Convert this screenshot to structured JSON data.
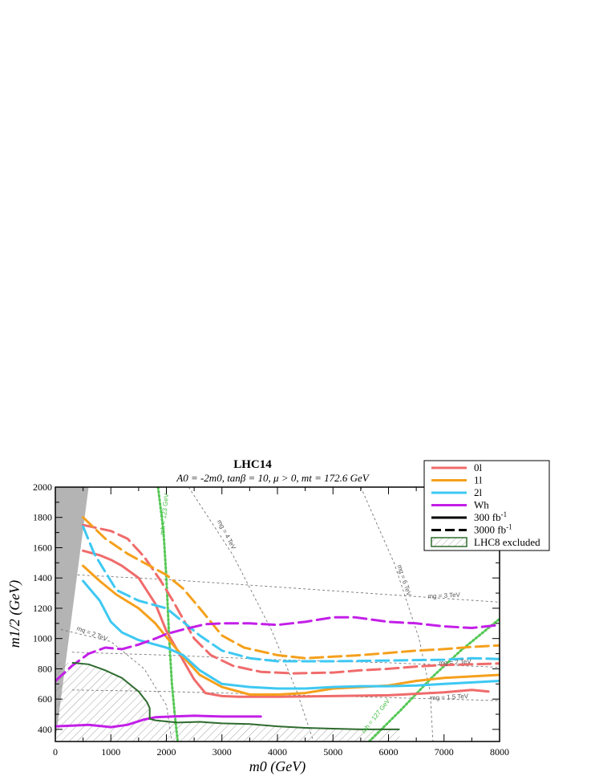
{
  "chart_data": {
    "type": "line",
    "title": "LHC14",
    "subtitle": "A0 = -2m0,  tanβ = 10,  μ > 0,  mt = 172.6 GeV",
    "xlabel": "m0 (GeV)",
    "ylabel": "m1/2 (GeV)",
    "xlim": [
      0,
      8000
    ],
    "ylim": [
      320,
      2000
    ],
    "x_ticks": [
      0,
      1000,
      2000,
      3000,
      4000,
      5000,
      6000,
      7000,
      8000
    ],
    "y_ticks": [
      400,
      600,
      800,
      1000,
      1200,
      1400,
      1600,
      1800,
      2000
    ],
    "legend_position": "top-right",
    "legend": [
      "0l",
      "1l",
      "2l",
      "Wh",
      "300 fb-1",
      "3000 fb-1",
      "LHC8 excluded"
    ],
    "colors": {
      "0l": "#f06b6b",
      "1l": "#f5a01c",
      "2l": "#3ec8f2",
      "Wh": "#c31fe8",
      "lhc8": "#2e6b2e",
      "higgs": "#55c855",
      "theory_excluded": "#b4b4b4",
      "contours": "#777777"
    },
    "series": [
      {
        "name": "0l",
        "luminosity": "300 fb-1",
        "x": [
          500,
          800,
          1000,
          1200,
          1500,
          1800,
          2000,
          2200,
          2500,
          2700,
          3000,
          3300,
          4000,
          5000,
          6000,
          7000,
          7500,
          7800
        ],
        "y": [
          1580,
          1550,
          1520,
          1480,
          1400,
          1230,
          1050,
          920,
          730,
          640,
          620,
          615,
          615,
          620,
          625,
          645,
          660,
          650
        ]
      },
      {
        "name": "0l",
        "luminosity": "3000 fb-1",
        "x": [
          500,
          1000,
          1300,
          1600,
          1900,
          2100,
          2300,
          2500,
          2800,
          3200,
          3700,
          4300,
          5000,
          5500,
          6000,
          6500,
          7000,
          7500,
          8000
        ],
        "y": [
          1750,
          1710,
          1660,
          1540,
          1380,
          1260,
          1130,
          1000,
          890,
          820,
          780,
          770,
          775,
          790,
          800,
          815,
          825,
          830,
          835
        ]
      },
      {
        "name": "1l",
        "luminosity": "300 fb-1",
        "x": [
          500,
          800,
          1100,
          1500,
          1800,
          2000,
          2300,
          2600,
          3000,
          3500,
          4000,
          4500,
          5000,
          5500,
          6000,
          6500,
          7000,
          7500,
          8000
        ],
        "y": [
          1480,
          1380,
          1290,
          1200,
          1100,
          1010,
          880,
          760,
          680,
          630,
          630,
          640,
          670,
          680,
          690,
          720,
          740,
          750,
          760
        ]
      },
      {
        "name": "1l",
        "luminosity": "3000 fb-1",
        "x": [
          500,
          900,
          1300,
          1700,
          2000,
          2300,
          2600,
          3000,
          3400,
          4000,
          4500,
          5000,
          5500,
          6000,
          6500,
          7000,
          7500,
          8000
        ],
        "y": [
          1800,
          1660,
          1560,
          1480,
          1420,
          1330,
          1200,
          1020,
          940,
          890,
          870,
          880,
          890,
          905,
          920,
          930,
          945,
          955
        ]
      },
      {
        "name": "2l",
        "luminosity": "300 fb-1",
        "x": [
          500,
          800,
          1000,
          1200,
          1500,
          1800,
          2000,
          2300,
          2600,
          3000,
          3500,
          4000,
          4500,
          5000,
          5500,
          6000,
          6500,
          7000,
          7500,
          8000
        ],
        "y": [
          1380,
          1250,
          1110,
          1040,
          990,
          960,
          940,
          890,
          790,
          700,
          680,
          670,
          670,
          680,
          685,
          685,
          690,
          700,
          710,
          720
        ]
      },
      {
        "name": "2l",
        "luminosity": "3000 fb-1",
        "x": [
          500,
          700,
          900,
          1100,
          1500,
          2000,
          2300,
          2600,
          3000,
          3500,
          4000,
          5000,
          6000,
          7000,
          7500,
          8000
        ],
        "y": [
          1740,
          1560,
          1440,
          1320,
          1250,
          1200,
          1110,
          1020,
          920,
          870,
          850,
          850,
          855,
          860,
          870,
          865
        ]
      },
      {
        "name": "Wh",
        "luminosity": "300 fb-1",
        "x": [
          0,
          300,
          600,
          1000,
          1300,
          1600,
          1800,
          2100,
          2500,
          3000,
          3500,
          3700
        ],
        "y": [
          420,
          425,
          430,
          415,
          430,
          465,
          480,
          485,
          490,
          485,
          485,
          485
        ]
      },
      {
        "name": "Wh",
        "luminosity": "3000 fb-1",
        "x": [
          0,
          300,
          600,
          900,
          1200,
          1500,
          1800,
          2000,
          2300,
          2700,
          3000,
          3500,
          4000,
          4500,
          5000,
          5400,
          6000,
          6500,
          7000,
          7500,
          8000
        ],
        "y": [
          720,
          820,
          900,
          940,
          930,
          960,
          1000,
          1030,
          1060,
          1095,
          1100,
          1100,
          1090,
          1110,
          1140,
          1140,
          1110,
          1100,
          1080,
          1070,
          1090
        ]
      },
      {
        "name": "LHC8 excluded",
        "x": [
          300,
          600,
          900,
          1200,
          1500,
          1650,
          1700,
          1700,
          1800,
          2200,
          2600,
          3000,
          3500,
          4000,
          4500,
          5000,
          5500,
          6000,
          6200
        ],
        "y": [
          840,
          830,
          790,
          740,
          650,
          580,
          540,
          470,
          460,
          445,
          450,
          440,
          435,
          420,
          410,
          405,
          400,
          400,
          400
        ]
      }
    ],
    "theory_excluded_region": {
      "x": [
        0,
        600,
        0
      ],
      "y": [
        2000,
        2000,
        320
      ]
    },
    "higgs_mass_contours": [
      {
        "label": "mh = 123 GeV",
        "x": [
          1850,
          1950,
          2000,
          2050,
          2100,
          2150,
          2200
        ],
        "y": [
          2000,
          1700,
          1400,
          1000,
          700,
          500,
          330
        ]
      },
      {
        "label": "mh = 127 GeV",
        "x": [
          5650,
          6200,
          6800,
          7300,
          8000
        ],
        "y": [
          320,
          520,
          750,
          920,
          1130
        ]
      }
    ],
    "mass_contours": [
      {
        "label": "mg = 4 TeV",
        "x": [
          2400,
          3200,
          3900,
          4350,
          4650
        ],
        "y": [
          2000,
          1550,
          1050,
          650,
          320
        ]
      },
      {
        "label": "mg = 6 TeV",
        "x": [
          5500,
          6100,
          6550,
          6750,
          6800
        ],
        "y": [
          2000,
          1500,
          1000,
          650,
          320
        ]
      },
      {
        "label": "mg = 3 TeV",
        "x": [
          400,
          2000,
          4000,
          6000,
          8000
        ],
        "y": [
          1420,
          1390,
          1340,
          1290,
          1240
        ]
      },
      {
        "label": "mg = 2 TeV",
        "x": [
          300,
          2000,
          4000,
          6000,
          8000
        ],
        "y": [
          910,
          890,
          860,
          840,
          810
        ]
      },
      {
        "label": "mg = 1.5 TeV",
        "x": [
          300,
          2000,
          4000,
          6000,
          8000
        ],
        "y": [
          660,
          650,
          630,
          610,
          590
        ]
      },
      {
        "label": "mq = 2 TeV",
        "x": [
          100,
          1000,
          1600,
          2000,
          2100
        ],
        "y": [
          1060,
          980,
          800,
          560,
          320
        ]
      }
    ]
  }
}
